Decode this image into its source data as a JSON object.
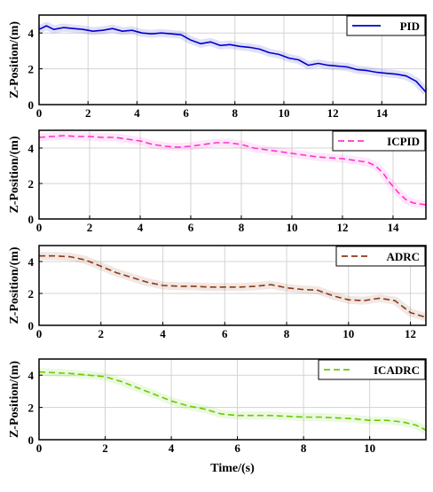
{
  "chart_data": [
    {
      "type": "line",
      "ylabel": "Z-Position/(m)",
      "xlabel": "",
      "xlim": [
        0,
        15.8
      ],
      "ylim": [
        0,
        5
      ],
      "xticks": [
        "0",
        "2",
        "4",
        "6",
        "8",
        "10",
        "12",
        "14"
      ],
      "yticks": [
        "0",
        "2",
        "4"
      ],
      "grid": true,
      "legend_position": "top-right",
      "series": [
        {
          "name": "PID",
          "color": "#0000cc",
          "dash": "solid",
          "x": [
            0,
            0.3,
            0.6,
            1.0,
            1.4,
            1.8,
            2.2,
            2.6,
            3.0,
            3.4,
            3.8,
            4.2,
            4.6,
            5.0,
            5.4,
            5.8,
            6.2,
            6.6,
            7.0,
            7.4,
            7.8,
            8.2,
            8.6,
            9.0,
            9.4,
            9.8,
            10.2,
            10.6,
            11.0,
            11.4,
            11.8,
            12.2,
            12.6,
            13.0,
            13.4,
            13.8,
            14.2,
            14.6,
            15.0,
            15.4,
            15.8
          ],
          "y": [
            4.2,
            4.4,
            4.2,
            4.3,
            4.25,
            4.2,
            4.1,
            4.15,
            4.25,
            4.1,
            4.15,
            4.0,
            3.95,
            4.0,
            3.95,
            3.9,
            3.6,
            3.4,
            3.5,
            3.3,
            3.35,
            3.25,
            3.2,
            3.1,
            2.9,
            2.8,
            2.6,
            2.5,
            2.2,
            2.3,
            2.2,
            2.15,
            2.1,
            1.95,
            1.9,
            1.8,
            1.75,
            1.7,
            1.6,
            1.3,
            0.7
          ]
        }
      ]
    },
    {
      "type": "line",
      "ylabel": "Z-Position/(m)",
      "xlabel": "",
      "xlim": [
        0,
        15.3
      ],
      "ylim": [
        0,
        5
      ],
      "xticks": [
        "0",
        "2",
        "4",
        "6",
        "8",
        "10",
        "12",
        "14"
      ],
      "yticks": [
        "0",
        "2",
        "4"
      ],
      "grid": true,
      "legend_position": "top-right",
      "series": [
        {
          "name": "ICPID",
          "color": "#ff33cc",
          "dash": "dashed",
          "x": [
            0,
            0.5,
            1.0,
            1.5,
            2.0,
            2.5,
            3.0,
            3.5,
            4.0,
            4.5,
            5.0,
            5.5,
            6.0,
            6.5,
            7.0,
            7.5,
            8.0,
            8.5,
            9.0,
            9.5,
            10.0,
            10.5,
            11.0,
            11.5,
            12.0,
            12.5,
            13.0,
            13.3,
            13.6,
            13.9,
            14.2,
            14.5,
            14.8,
            15.3
          ],
          "y": [
            4.6,
            4.65,
            4.7,
            4.65,
            4.65,
            4.6,
            4.6,
            4.5,
            4.4,
            4.2,
            4.1,
            4.05,
            4.1,
            4.2,
            4.3,
            4.3,
            4.2,
            4.0,
            3.9,
            3.8,
            3.7,
            3.6,
            3.5,
            3.45,
            3.4,
            3.3,
            3.2,
            3.0,
            2.6,
            2.0,
            1.5,
            1.1,
            0.9,
            0.8
          ]
        }
      ]
    },
    {
      "type": "line",
      "ylabel": "Z-Position/(m)",
      "xlabel": "",
      "xlim": [
        0,
        12.5
      ],
      "ylim": [
        0,
        5
      ],
      "xticks": [
        "0",
        "2",
        "4",
        "6",
        "8",
        "10",
        "12"
      ],
      "yticks": [
        "0",
        "2",
        "4"
      ],
      "grid": true,
      "legend_position": "top-right",
      "series": [
        {
          "name": "ADRC",
          "color": "#8b3a1a",
          "dash": "dashed",
          "x": [
            0,
            0.5,
            1.0,
            1.5,
            2.0,
            2.5,
            3.0,
            3.5,
            4.0,
            4.5,
            5.0,
            5.5,
            6.0,
            6.5,
            7.0,
            7.5,
            8.0,
            8.5,
            9.0,
            9.5,
            10.0,
            10.5,
            11.0,
            11.5,
            12.0,
            12.5
          ],
          "y": [
            4.35,
            4.35,
            4.3,
            4.1,
            3.7,
            3.3,
            3.0,
            2.7,
            2.5,
            2.45,
            2.45,
            2.4,
            2.4,
            2.4,
            2.45,
            2.55,
            2.35,
            2.25,
            2.2,
            1.85,
            1.6,
            1.55,
            1.7,
            1.55,
            0.8,
            0.5
          ]
        }
      ]
    },
    {
      "type": "line",
      "ylabel": "Z-Position/(m)",
      "xlabel": "Time/(s)",
      "xlim": [
        0,
        11.7
      ],
      "ylim": [
        0,
        5
      ],
      "xticks": [
        "0",
        "2",
        "4",
        "6",
        "8",
        "10"
      ],
      "yticks": [
        "0",
        "2",
        "4"
      ],
      "grid": true,
      "legend_position": "top-right",
      "series": [
        {
          "name": "ICADRC",
          "color": "#66cc00",
          "dash": "dashed",
          "x": [
            0,
            0.5,
            1.0,
            1.5,
            2.0,
            2.5,
            3.0,
            3.5,
            4.0,
            4.5,
            5.0,
            5.5,
            6.0,
            6.5,
            7.0,
            7.5,
            8.0,
            8.5,
            9.0,
            9.5,
            10.0,
            10.5,
            11.0,
            11.4,
            11.7
          ],
          "y": [
            4.2,
            4.15,
            4.1,
            4.0,
            3.9,
            3.6,
            3.2,
            2.8,
            2.4,
            2.1,
            1.9,
            1.6,
            1.5,
            1.5,
            1.5,
            1.45,
            1.4,
            1.4,
            1.35,
            1.3,
            1.2,
            1.2,
            1.1,
            0.9,
            0.6
          ]
        }
      ]
    }
  ]
}
